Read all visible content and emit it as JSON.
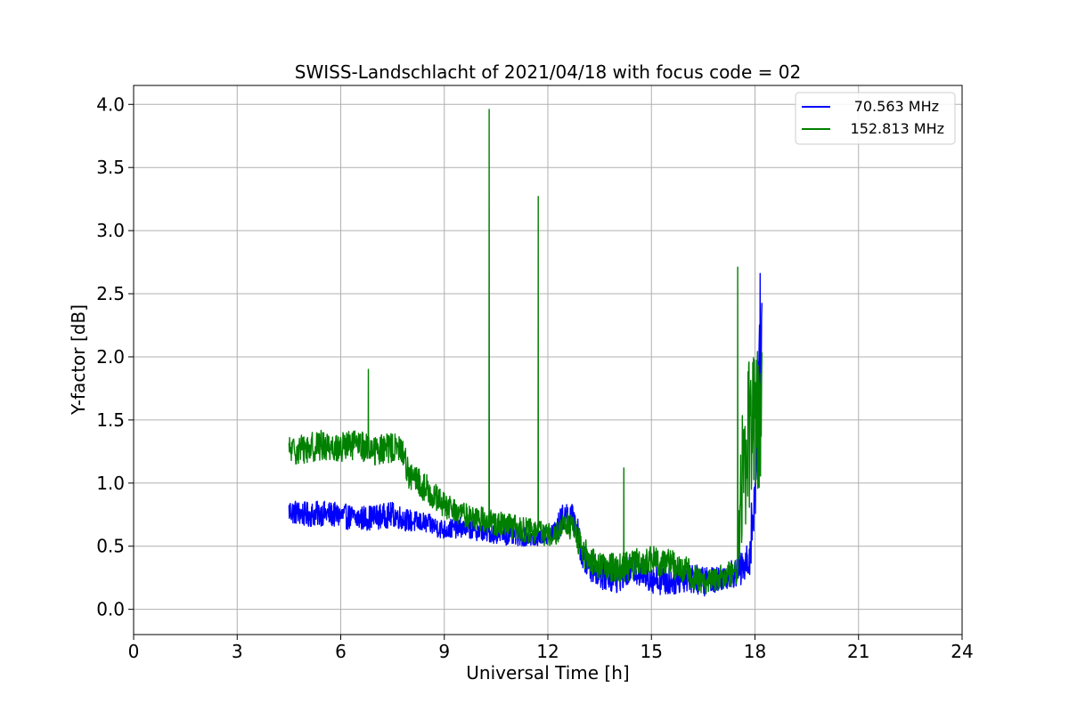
{
  "chart_data": {
    "type": "line",
    "title": "SWISS-Landschlacht of 2021/04/18 with focus code = 02",
    "xlabel": "Universal Time [h]",
    "ylabel": "Y-factor [dB]",
    "xlim": [
      0,
      24
    ],
    "ylim": [
      -0.2,
      4.15
    ],
    "xticks": [
      0,
      3,
      6,
      9,
      12,
      15,
      18,
      21,
      24
    ],
    "yticks": [
      0.0,
      0.5,
      1.0,
      1.5,
      2.0,
      2.5,
      3.0,
      3.5,
      4.0
    ],
    "xtick_labels": [
      "0",
      "3",
      "6",
      "9",
      "12",
      "15",
      "18",
      "21",
      "24"
    ],
    "ytick_labels": [
      "0.0",
      "0.5",
      "1.0",
      "1.5",
      "2.0",
      "2.5",
      "3.0",
      "3.5",
      "4.0"
    ],
    "grid": true,
    "legend_position": "top-right",
    "series": [
      {
        "name": "70.563 MHz",
        "color": "#0000ff",
        "x": [
          4.5,
          5.0,
          5.5,
          6.0,
          6.5,
          7.0,
          7.5,
          8.0,
          8.5,
          9.0,
          9.5,
          10.0,
          10.5,
          11.0,
          11.5,
          12.0,
          12.3,
          12.5,
          12.8,
          13.0,
          13.5,
          14.0,
          14.5,
          15.0,
          15.5,
          16.0,
          16.5,
          17.0,
          17.5,
          17.8,
          18.0,
          18.1,
          18.2
        ],
        "y": [
          0.78,
          0.75,
          0.76,
          0.74,
          0.72,
          0.73,
          0.75,
          0.7,
          0.68,
          0.63,
          0.65,
          0.62,
          0.6,
          0.58,
          0.57,
          0.58,
          0.65,
          0.75,
          0.7,
          0.4,
          0.28,
          0.25,
          0.32,
          0.25,
          0.22,
          0.26,
          0.22,
          0.25,
          0.3,
          0.35,
          0.9,
          1.8,
          2.2
        ],
        "band": [
          0.1,
          0.1,
          0.1,
          0.1,
          0.1,
          0.1,
          0.1,
          0.09,
          0.08,
          0.08,
          0.08,
          0.08,
          0.08,
          0.08,
          0.07,
          0.07,
          0.12,
          0.12,
          0.12,
          0.12,
          0.12,
          0.12,
          0.12,
          0.12,
          0.12,
          0.12,
          0.12,
          0.1,
          0.12,
          0.18,
          0.3,
          0.5,
          0.45
        ]
      },
      {
        "name": "152.813 MHz",
        "color": "#008000",
        "x": [
          4.5,
          5.0,
          5.5,
          6.0,
          6.5,
          7.0,
          7.5,
          7.8,
          8.0,
          8.5,
          9.0,
          9.5,
          10.0,
          10.5,
          11.0,
          11.5,
          12.0,
          12.3,
          12.5,
          12.8,
          13.0,
          13.5,
          14.0,
          14.5,
          15.0,
          15.5,
          16.0,
          16.5,
          17.0,
          17.5,
          17.6,
          17.8,
          18.0,
          18.2
        ],
        "y": [
          1.25,
          1.28,
          1.3,
          1.28,
          1.3,
          1.26,
          1.28,
          1.25,
          1.05,
          0.95,
          0.82,
          0.75,
          0.72,
          0.68,
          0.65,
          0.62,
          0.6,
          0.62,
          0.68,
          0.62,
          0.45,
          0.35,
          0.32,
          0.36,
          0.38,
          0.38,
          0.3,
          0.22,
          0.25,
          0.32,
          1.1,
          1.35,
          1.45,
          1.55
        ],
        "band": [
          0.12,
          0.12,
          0.12,
          0.12,
          0.12,
          0.12,
          0.12,
          0.12,
          0.12,
          0.12,
          0.1,
          0.1,
          0.1,
          0.1,
          0.1,
          0.1,
          0.1,
          0.1,
          0.1,
          0.1,
          0.12,
          0.12,
          0.12,
          0.12,
          0.12,
          0.12,
          0.12,
          0.1,
          0.1,
          0.12,
          0.6,
          0.6,
          0.6,
          0.55
        ]
      }
    ],
    "spikes": [
      {
        "series": "152.813 MHz",
        "x": 6.8,
        "y": 1.9
      },
      {
        "series": "152.813 MHz",
        "x": 10.3,
        "y": 3.96
      },
      {
        "series": "152.813 MHz",
        "x": 11.72,
        "y": 3.27
      },
      {
        "series": "152.813 MHz",
        "x": 14.2,
        "y": 1.12
      },
      {
        "series": "152.813 MHz",
        "x": 17.5,
        "y": 2.71
      },
      {
        "series": "70.563 MHz",
        "x": 18.15,
        "y": 2.66
      }
    ]
  }
}
